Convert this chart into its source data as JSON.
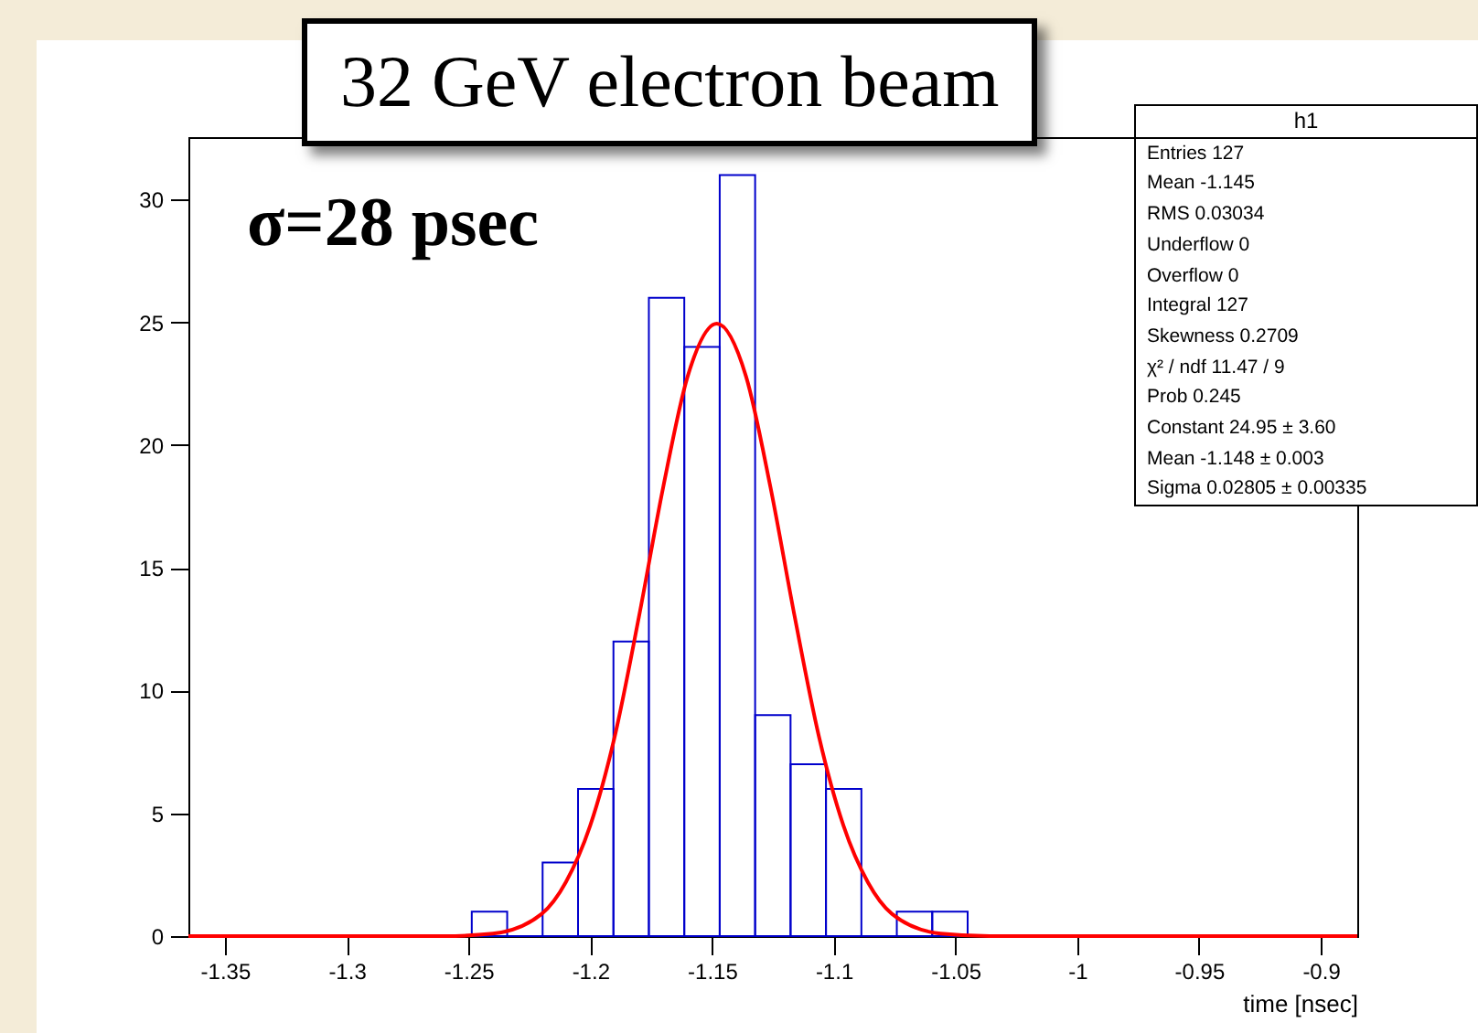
{
  "chart_data": {
    "type": "histogram",
    "title": "32 GeV electron beam",
    "xlabel": "time [nsec]",
    "bins": [
      -1.365,
      -1.350455,
      -1.335909,
      -1.321364,
      -1.306818,
      -1.292273,
      -1.277727,
      -1.263182,
      -1.248636,
      -1.234091,
      -1.219545,
      -1.205,
      -1.190455,
      -1.175909,
      -1.161364,
      -1.146818,
      -1.132273,
      -1.117727,
      -1.103182,
      -1.088636,
      -1.074091,
      -1.059545,
      -1.045,
      -1.030455,
      -1.015909,
      -1.001364,
      -0.986818,
      -0.972273,
      -0.957727,
      -0.943182,
      -0.928636,
      -0.914091,
      -0.899545,
      -0.885
    ],
    "series": [
      {
        "color": "#0000cc",
        "values": [
          0,
          0,
          0,
          0,
          0,
          0,
          0,
          0,
          1,
          0,
          3,
          6,
          12,
          26,
          24,
          31,
          9,
          7,
          6,
          0,
          1,
          1,
          0,
          0,
          0,
          0,
          0,
          0,
          0,
          0,
          0,
          0,
          0
        ]
      },
      {
        "type": "line",
        "color": "#ff0000",
        "x": [
          -1.365,
          -1.26,
          -1.24,
          -1.22,
          -1.21,
          -1.2,
          -1.19,
          -1.18,
          -1.17,
          -1.16,
          -1.148,
          -1.136,
          -1.126,
          -1.116,
          -1.106,
          -1.096,
          -1.086,
          -1.076,
          -1.056,
          -1.036,
          -0.885
        ],
        "values": [
          0,
          0,
          0.1,
          0.9,
          2.2,
          4.5,
          8.1,
          13,
          18.3,
          22.8,
          24.95,
          22.8,
          18.3,
          13,
          8.1,
          4.5,
          2.2,
          0.9,
          0.1,
          0,
          0
        ]
      }
    ],
    "xlim": [
      -1.365,
      -0.885
    ],
    "ylim": [
      0,
      32.55
    ],
    "xticks": [
      -1.35,
      -1.3,
      -1.25,
      -1.2,
      -1.15,
      -1.1,
      -1.05,
      -1,
      -0.95,
      -0.9
    ],
    "yticks": [
      0,
      5,
      10,
      15,
      20,
      25,
      30
    ],
    "annotations": [
      "σ=28 psec",
      "h1",
      "Entries 127",
      "Mean -1.145",
      "RMS 0.03034",
      "Underflow 0",
      "Overflow 0",
      "Integral 127",
      "Skewness 0.2709",
      "χ² / ndf 11.47 / 9",
      "Prob 0.245",
      "Constant 24.95 ± 3.60",
      "Mean -1.148 ± 0.003",
      "Sigma 0.02805 ± 0.00335"
    ]
  }
}
